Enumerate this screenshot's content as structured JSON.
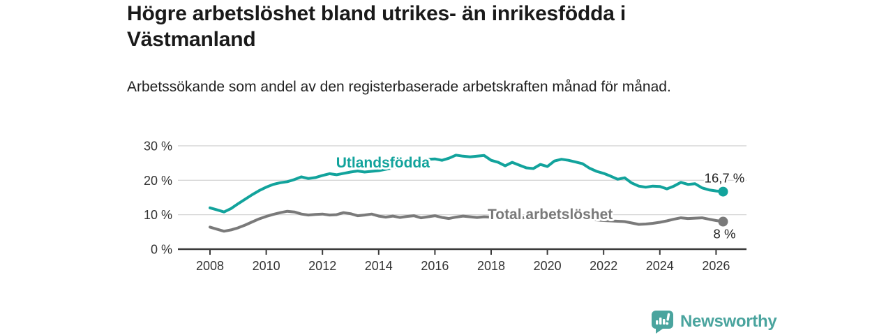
{
  "header": {
    "title": "Högre arbetslöshet bland utrikes- än inrikesfödda i Västmanland",
    "subtitle": "Arbetssökande som andel av den registerbaserade arbetskraften månad för månad."
  },
  "footer": {
    "brand": "Newsworthy",
    "logo_icon": "bar-chart-speech-bubble-icon",
    "brand_color": "#4aa49e"
  },
  "chart_data": {
    "type": "line",
    "title": "Högre arbetslöshet bland utrikes- än inrikesfödda i Västmanland",
    "subtitle": "Arbetssökande som andel av den registerbaserade arbetskraften månad för månad.",
    "grid": "horizontal-only",
    "x_axis": {
      "unit": "year",
      "ticks": [
        2008,
        2010,
        2012,
        2014,
        2016,
        2018,
        2020,
        2022,
        2024,
        2026
      ],
      "range": [
        2008,
        2026.25
      ]
    },
    "y_axis": {
      "unit": "%",
      "ticks": [
        0,
        10,
        20,
        30
      ],
      "tick_labels": [
        "0 %",
        "10 %",
        "20 %",
        "30 %"
      ],
      "range": [
        0,
        32
      ]
    },
    "x_start": 2008,
    "x_step": 0.25,
    "series": [
      {
        "name": "Utlandsfödda",
        "color": "#12a39c",
        "end_label": "16,7 %",
        "end_value": 16.7,
        "label_pos": {
          "x": 2014.15,
          "y": 25.1
        },
        "values": [
          12.0,
          11.4,
          10.8,
          11.8,
          13.2,
          14.5,
          15.8,
          17.0,
          18.0,
          18.8,
          19.3,
          19.6,
          20.2,
          21.0,
          20.5,
          20.8,
          21.4,
          21.9,
          21.6,
          22.0,
          22.4,
          22.7,
          22.4,
          22.6,
          22.8,
          23.2,
          23.6,
          24.2,
          24.8,
          25.4,
          25.8,
          26.1,
          26.2,
          25.8,
          26.4,
          27.3,
          27.0,
          26.8,
          27.0,
          27.2,
          25.8,
          25.2,
          24.2,
          25.2,
          24.4,
          23.6,
          23.4,
          24.6,
          24.0,
          25.6,
          26.1,
          25.8,
          25.3,
          24.8,
          23.5,
          22.6,
          22.0,
          21.2,
          20.3,
          20.7,
          19.2,
          18.3,
          18.0,
          18.3,
          18.2,
          17.5,
          18.3,
          19.4,
          18.8,
          19.0,
          17.8,
          17.2,
          16.9,
          16.7
        ]
      },
      {
        "name": "Total arbetslöshet",
        "color": "#7a7a7a",
        "end_label": "8 %",
        "end_value": 8,
        "label_pos": {
          "x": 2020.1,
          "y": 10.1
        },
        "values": [
          6.4,
          5.8,
          5.2,
          5.6,
          6.2,
          7.0,
          7.9,
          8.8,
          9.5,
          10.1,
          10.6,
          11.0,
          10.8,
          10.2,
          9.9,
          10.1,
          10.2,
          9.9,
          10.0,
          10.6,
          10.3,
          9.7,
          9.9,
          10.2,
          9.6,
          9.3,
          9.6,
          9.2,
          9.5,
          9.7,
          9.1,
          9.4,
          9.7,
          9.2,
          8.9,
          9.3,
          9.6,
          9.4,
          9.2,
          9.4,
          9.3,
          9.2,
          9.0,
          9.1,
          9.0,
          9.2,
          9.3,
          9.5,
          9.8,
          10.4,
          10.2,
          9.9,
          9.6,
          9.2,
          8.8,
          8.5,
          8.3,
          8.2,
          8.1,
          8.0,
          7.6,
          7.2,
          7.3,
          7.5,
          7.8,
          8.2,
          8.7,
          9.1,
          8.9,
          9.0,
          9.1,
          8.7,
          8.3,
          8.0
        ]
      }
    ],
    "colors": {
      "grid": "#d6d6d6",
      "axis": "#3a3a3a",
      "tick_text": "#333333",
      "value_label_text": "#222222"
    }
  }
}
